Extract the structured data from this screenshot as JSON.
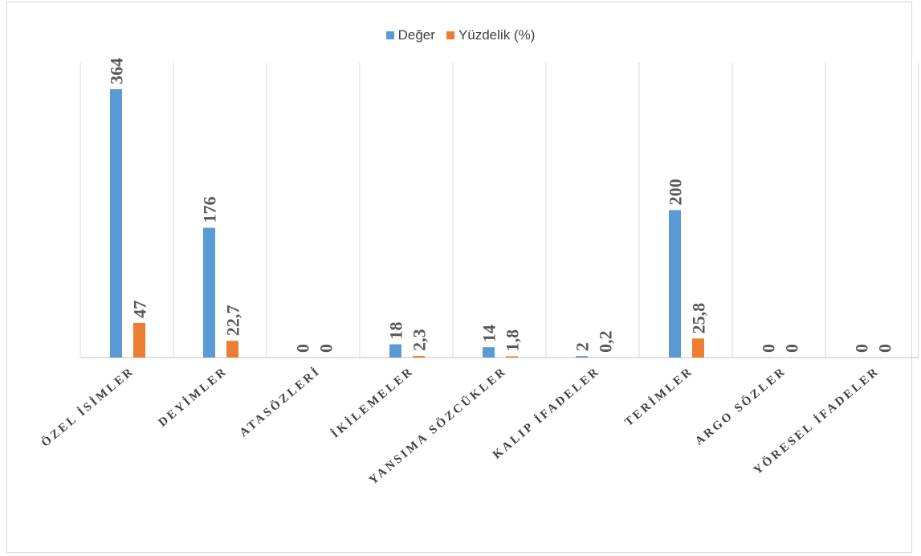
{
  "chart_data": {
    "type": "bar",
    "categories": [
      "ÖZEL İSİMLER",
      "DEYİMLER",
      "ATASÖZLERİ",
      "İKİLEMELER",
      "YANSIMA SÖZCÜKLER",
      "KALIP İFADELER",
      "TERİMLER",
      "ARGO SÖZLER",
      "YÖRESEL İFADELER"
    ],
    "series": [
      {
        "name": "Değer",
        "color": "#5b9bd5",
        "values": [
          364,
          176,
          0,
          18,
          14,
          2,
          200,
          0,
          0
        ],
        "labels": [
          "364",
          "176",
          "0",
          "18",
          "14",
          "2",
          "200",
          "0",
          "0"
        ]
      },
      {
        "name": "Yüzdelik (%)",
        "color": "#ed7d31",
        "values": [
          47,
          22.7,
          0,
          2.3,
          1.8,
          0.2,
          25.8,
          0,
          0
        ],
        "labels": [
          "47",
          "22,7",
          "0",
          "2,3",
          "1,8",
          "0,2",
          "25,8",
          "0",
          "0"
        ]
      }
    ],
    "title": "",
    "xlabel": "",
    "ylabel": "",
    "ylim": [
      0,
      400
    ],
    "grid": "vertical category dividers",
    "legend": "top-center"
  }
}
